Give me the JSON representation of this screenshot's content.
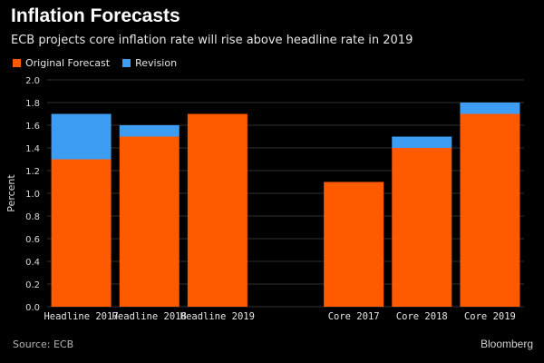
{
  "header": {
    "title": "Inflation Forecasts",
    "subtitle": "ECB projects core inflation rate will rise above headline rate in 2019"
  },
  "footer": {
    "source": "Source: ECB",
    "logo": "Bloomberg"
  },
  "colors": {
    "original": "#ff5a00",
    "revision": "#3d9df2",
    "background": "#000000"
  },
  "chart_data": {
    "type": "bar",
    "stacked": true,
    "title": "Inflation Forecasts",
    "subtitle": "ECB projects core inflation rate will rise above headline rate in 2019",
    "xlabel": "",
    "ylabel": "Percent",
    "ylim": [
      0,
      2.0
    ],
    "yticks": [
      "0.0",
      "0.2",
      "0.4",
      "0.6",
      "0.8",
      "1.0",
      "1.2",
      "1.4",
      "1.6",
      "1.8",
      "2.0"
    ],
    "grid": true,
    "legend_position": "top-left",
    "categories": [
      "Headline 2017",
      "Headline 2018",
      "Headline 2019",
      "Core 2017",
      "Core 2018",
      "Core 2019"
    ],
    "series": [
      {
        "name": "Original Forecast",
        "values": [
          1.3,
          1.5,
          1.7,
          1.1,
          1.4,
          1.7
        ]
      },
      {
        "name": "Revision",
        "values": [
          0.4,
          0.1,
          0.0,
          0.0,
          0.1,
          0.1
        ]
      }
    ]
  }
}
